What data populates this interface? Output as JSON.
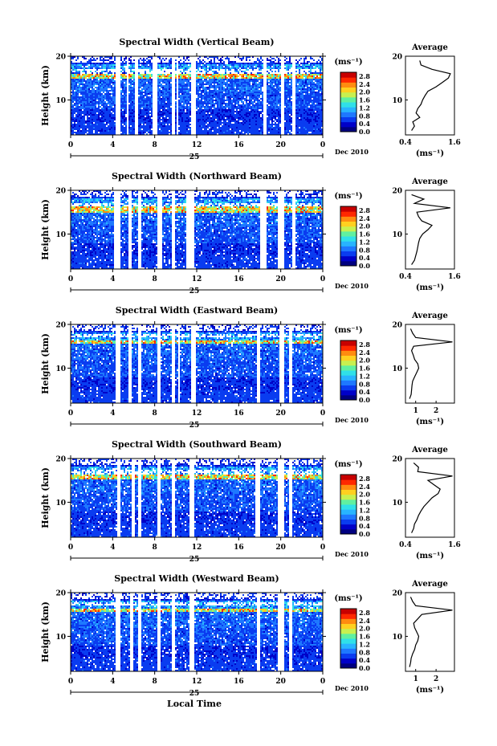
{
  "figure": {
    "xlabel_bottom": "Local Time",
    "date_label": "Dec 2010",
    "day_label": "25",
    "x_ticks": [
      "0",
      "4",
      "8",
      "12",
      "16",
      "20",
      "0"
    ],
    "colorbar_unit": "(ms⁻¹)",
    "colorbar_ticks": [
      "2.8",
      "2.4",
      "2.0",
      "1.6",
      "1.2",
      "0.8",
      "0.4",
      "0.0"
    ],
    "y_ticks": [
      "20",
      "10"
    ],
    "ylabel": "Height (km)",
    "avg_title": "Average",
    "avg_unit": "(ms⁻¹)",
    "avg_y_ticks": [
      "20",
      "10"
    ],
    "colormap": [
      "#000080",
      "#0000c8",
      "#0a3cf0",
      "#1e78ff",
      "#28b4ff",
      "#30e0e8",
      "#60f0a0",
      "#c8f050",
      "#ffd020",
      "#ff8c10",
      "#ff2800",
      "#c80000"
    ]
  },
  "chart_data": [
    {
      "type": "heatmap",
      "title": "Spectral Width (Vertical Beam)",
      "ylabel": "Height (km)",
      "xlabel": "",
      "x_range": [
        0,
        24
      ],
      "y_range": [
        2,
        20
      ],
      "gaps_hours": [
        [
          4.2,
          4.6
        ],
        [
          5.3,
          5.5
        ],
        [
          6.1,
          6.4
        ],
        [
          7.7,
          8.2
        ],
        [
          9.6,
          9.8
        ],
        [
          10.0,
          10.2
        ],
        [
          11.4,
          11.9
        ],
        [
          18.2,
          18.6
        ],
        [
          19.9,
          20.2
        ],
        [
          21.0,
          21.4
        ]
      ],
      "tropopause_km": 15.5,
      "avg_profile": {
        "xticks": [
          "0.4",
          "1.6"
        ],
        "xlim": [
          0.4,
          1.6
        ],
        "heights": [
          3,
          4,
          5,
          6,
          7,
          8,
          9,
          10,
          11,
          12,
          13,
          14,
          15,
          16,
          17,
          18,
          19
        ],
        "values": [
          0.55,
          0.62,
          0.58,
          0.75,
          0.66,
          0.7,
          0.78,
          0.82,
          0.88,
          0.95,
          1.15,
          1.3,
          1.45,
          1.5,
          1.05,
          0.78,
          0.75
        ]
      }
    },
    {
      "type": "heatmap",
      "title": "Spectral Width (Northward Beam)",
      "ylabel": "Height (km)",
      "xlabel": "",
      "x_range": [
        0,
        24
      ],
      "y_range": [
        2,
        20
      ],
      "gaps_hours": [
        [
          4.0,
          4.6
        ],
        [
          5.5,
          5.8
        ],
        [
          6.3,
          6.7
        ],
        [
          8.2,
          8.6
        ],
        [
          9.6,
          9.9
        ],
        [
          11.0,
          11.7
        ],
        [
          18.0,
          18.5
        ],
        [
          19.6,
          20.2
        ],
        [
          21.0,
          21.4
        ]
      ],
      "tropopause_km": 15.8,
      "avg_profile": {
        "xticks": [
          "0.4",
          "1.6"
        ],
        "xlim": [
          0.4,
          1.6
        ],
        "heights": [
          3,
          4,
          5,
          6,
          7,
          8,
          9,
          10,
          11,
          12,
          13,
          14,
          15,
          16,
          17,
          18,
          19
        ],
        "values": [
          0.55,
          0.62,
          0.65,
          0.68,
          0.7,
          0.72,
          0.75,
          0.82,
          0.95,
          1.05,
          0.8,
          0.72,
          0.68,
          1.5,
          0.62,
          0.85,
          0.55
        ]
      }
    },
    {
      "type": "heatmap",
      "title": "Spectral Width (Eastward Beam)",
      "ylabel": "Height (km)",
      "xlabel": "",
      "x_range": [
        0,
        24
      ],
      "y_range": [
        2,
        20
      ],
      "gaps_hours": [
        [
          4.2,
          4.6
        ],
        [
          5.5,
          5.8
        ],
        [
          6.3,
          6.6
        ],
        [
          8.2,
          8.5
        ],
        [
          9.6,
          9.9
        ],
        [
          10.1,
          10.3
        ],
        [
          11.4,
          11.8
        ],
        [
          17.6,
          18.0
        ],
        [
          19.8,
          20.2
        ],
        [
          20.7,
          21.0
        ]
      ],
      "tropopause_km": 16.5,
      "avg_profile": {
        "xticks": [
          "1",
          "2"
        ],
        "xlim": [
          0.5,
          2.9
        ],
        "heights": [
          3,
          4,
          5,
          6,
          7,
          8,
          9,
          10,
          11,
          12,
          13,
          14,
          15,
          16,
          17,
          18,
          19
        ],
        "values": [
          0.7,
          0.78,
          0.8,
          0.82,
          0.85,
          0.95,
          1.05,
          1.15,
          1.1,
          0.95,
          0.88,
          0.8,
          0.9,
          2.8,
          1.0,
          0.85,
          0.75
        ]
      }
    },
    {
      "type": "heatmap",
      "title": "Spectral Width (Southward Beam)",
      "ylabel": "Height (km)",
      "xlabel": "",
      "x_range": [
        0,
        24
      ],
      "y_range": [
        2,
        20
      ],
      "gaps_hours": [
        [
          4.3,
          4.7
        ],
        [
          5.7,
          6.0
        ],
        [
          6.4,
          6.7
        ],
        [
          8.2,
          8.5
        ],
        [
          9.6,
          9.9
        ],
        [
          11.3,
          11.7
        ],
        [
          17.5,
          18.0
        ],
        [
          19.7,
          20.2
        ],
        [
          20.7,
          21.0
        ]
      ],
      "tropopause_km": 16.0,
      "avg_profile": {
        "xticks": [
          "0.4",
          "1.6"
        ],
        "xlim": [
          0.4,
          1.6
        ],
        "heights": [
          3,
          4,
          5,
          6,
          7,
          8,
          9,
          10,
          11,
          12,
          13,
          14,
          15,
          16,
          17,
          18,
          19
        ],
        "values": [
          0.55,
          0.6,
          0.62,
          0.68,
          0.72,
          0.78,
          0.85,
          0.95,
          1.05,
          1.2,
          1.25,
          1.1,
          0.95,
          1.55,
          0.7,
          0.72,
          0.6
        ]
      }
    },
    {
      "type": "heatmap",
      "title": "Spectral Width (Westward Beam)",
      "ylabel": "Height (km)",
      "xlabel": "Local Time",
      "x_range": [
        0,
        24
      ],
      "y_range": [
        2,
        20
      ],
      "gaps_hours": [
        [
          4.2,
          4.7
        ],
        [
          5.6,
          5.9
        ],
        [
          6.3,
          6.7
        ],
        [
          8.2,
          8.5
        ],
        [
          9.6,
          9.9
        ],
        [
          11.3,
          11.7
        ],
        [
          17.6,
          18.0
        ],
        [
          19.6,
          20.2
        ],
        [
          20.7,
          21.0
        ]
      ],
      "tropopause_km": 16.5,
      "avg_profile": {
        "xticks": [
          "1",
          "2"
        ],
        "xlim": [
          0.5,
          2.9
        ],
        "heights": [
          3,
          4,
          5,
          6,
          7,
          8,
          9,
          10,
          11,
          12,
          13,
          14,
          15,
          16,
          17,
          18,
          19
        ],
        "values": [
          0.7,
          0.75,
          0.78,
          0.85,
          0.95,
          1.0,
          1.1,
          1.15,
          1.05,
          0.95,
          0.9,
          1.1,
          1.3,
          2.8,
          1.0,
          0.85,
          0.75
        ]
      }
    }
  ]
}
